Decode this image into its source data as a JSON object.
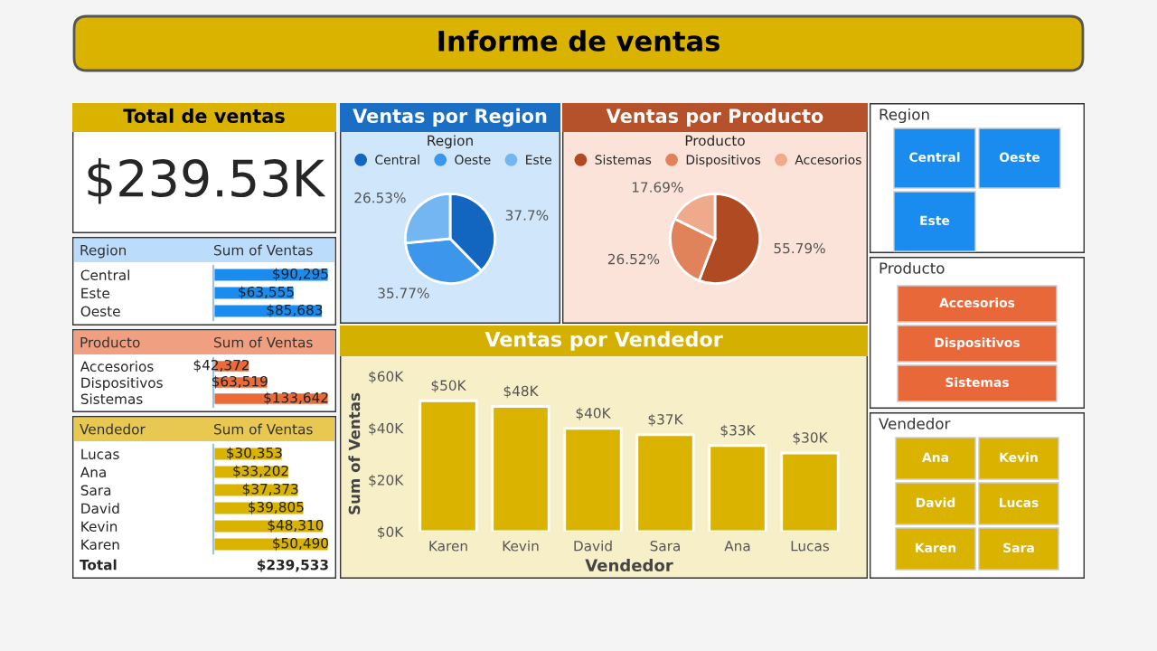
{
  "chart_data": [
    {
      "type": "other",
      "title": "Informe de ventas"
    },
    {
      "type": "other",
      "title": "Total de ventas",
      "annotations": [
        "$239.53K"
      ]
    },
    {
      "type": "pie",
      "title": "Ventas por Region",
      "legend_title": "Region",
      "legend": "top",
      "categories": [
        "Central",
        "Oeste",
        "Este"
      ],
      "values": [
        37.7,
        35.77,
        26.53
      ],
      "colors": [
        "#1366c0",
        "#3b96ec",
        "#74b6f2"
      ],
      "value_labels": [
        "37.7%",
        "35.77%",
        "26.53%"
      ]
    },
    {
      "type": "pie",
      "title": "Ventas por Producto",
      "legend_title": "Producto",
      "legend": "top",
      "categories": [
        "Sistemas",
        "Dispositivos",
        "Accesorios"
      ],
      "values": [
        55.79,
        26.52,
        17.69
      ],
      "colors": [
        "#b04a22",
        "#e0825a",
        "#eeaa8a"
      ],
      "value_labels": [
        "55.79%",
        "26.52%",
        "17.69%"
      ]
    },
    {
      "type": "other",
      "title": "Region",
      "annotations": [
        "Central",
        "Oeste",
        "Este"
      ],
      "color": "#1a8cf0"
    },
    {
      "type": "bar",
      "orientation": "horizontal",
      "tick_labels": "y",
      "ylabel": "Region",
      "xlabel": "Sum of Ventas",
      "categories": [
        "Central",
        "Este",
        "Oeste"
      ],
      "values": [
        90295,
        63555,
        85683
      ],
      "color": "#1a8cf0",
      "value_labels": [
        "$90,295",
        "$63,555",
        "$85,683"
      ]
    },
    {
      "type": "bar",
      "orientation": "horizontal",
      "tick_labels": "y",
      "ylabel": "Producto",
      "xlabel": "Sum of Ventas",
      "categories": [
        "Accesorios",
        "Dispositivos",
        "Sistemas"
      ],
      "values": [
        42372,
        63519,
        133642
      ],
      "color": "#ea6a3a",
      "value_labels": [
        "$42,372",
        "$63,519",
        "$133,642"
      ]
    },
    {
      "type": "other",
      "title": "Producto",
      "annotations": [
        "Accesorios",
        "Dispositivos",
        "Sistemas"
      ],
      "color": "#e8683a"
    },
    {
      "type": "bar",
      "orientation": "horizontal",
      "tick_labels": "y",
      "ylabel": "Vendedor",
      "xlabel": "Sum of Ventas",
      "categories": [
        "Lucas",
        "Ana",
        "Sara",
        "David",
        "Kevin",
        "Karen"
      ],
      "values": [
        30353,
        33202,
        37373,
        39805,
        48310,
        50490
      ],
      "color": "#d9b300",
      "value_labels": [
        "$30,353",
        "$33,202",
        "$37,373",
        "$39,805",
        "$48,310",
        "$50,490"
      ],
      "annotations": [
        "Total",
        "$239,533"
      ]
    },
    {
      "type": "bar",
      "title": "Ventas por Vendedor",
      "xlabel": "Vendedor",
      "ylabel": "Sum of Ventas",
      "categories": [
        "Karen",
        "Kevin",
        "David",
        "Sara",
        "Ana",
        "Lucas"
      ],
      "values": [
        50490,
        48310,
        39805,
        37373,
        33202,
        30353
      ],
      "color": "#d9b300",
      "value_labels": [
        "$50K",
        "$48K",
        "$40K",
        "$37K",
        "$33K",
        "$30K"
      ],
      "ylim": [
        0,
        60000
      ],
      "yticks": [
        {
          "value": 0,
          "label": "$0K"
        },
        {
          "value": 20000,
          "label": "$20K"
        },
        {
          "value": 40000,
          "label": "$40K"
        },
        {
          "value": 60000,
          "label": "$60K"
        }
      ],
      "grid": false
    },
    {
      "type": "other",
      "title": "Vendedor",
      "annotations": [
        "Ana",
        "Kevin",
        "David",
        "Lucas",
        "Karen",
        "Sara"
      ],
      "color": "#d9b300"
    }
  ]
}
